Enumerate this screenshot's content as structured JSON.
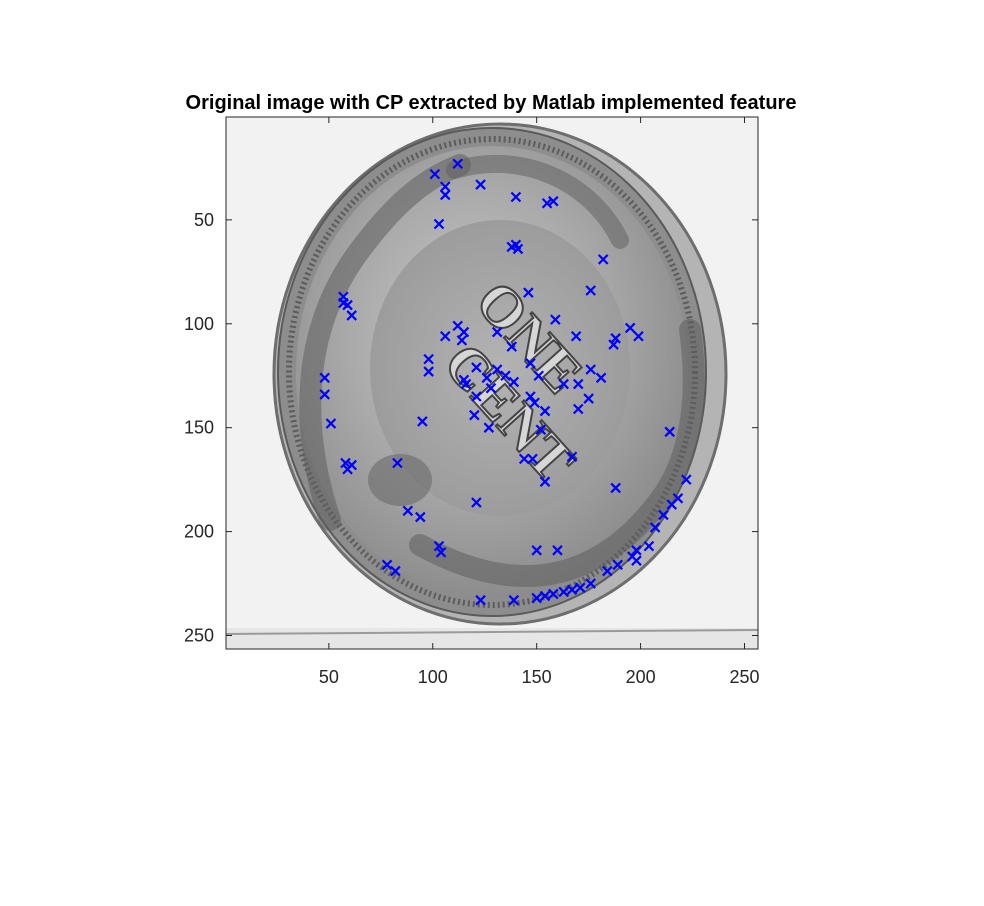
{
  "chart_data": {
    "type": "scatter",
    "title": "Original image with CP extracted by Matlab implemented feature",
    "xlabel": "",
    "ylabel": "",
    "xlim": [
      0.5,
      256.5
    ],
    "ylim": [
      0.5,
      256.5
    ],
    "y_reversed": true,
    "grid": false,
    "background_image": "grayscale-coin-one-cent",
    "marker": "x",
    "marker_color": "#0000ff",
    "xticks": [
      50,
      100,
      150,
      200,
      250
    ],
    "yticks": [
      50,
      100,
      150,
      200,
      250
    ],
    "xtick_labels": [
      "50",
      "100",
      "150",
      "200",
      "250"
    ],
    "ytick_labels": [
      "50",
      "100",
      "150",
      "200",
      "250"
    ],
    "points": [
      [
        112,
        23
      ],
      [
        101,
        28
      ],
      [
        106,
        34
      ],
      [
        106,
        38
      ],
      [
        123,
        33
      ],
      [
        103,
        52
      ],
      [
        140,
        39
      ],
      [
        155,
        42
      ],
      [
        158,
        41
      ],
      [
        138,
        63
      ],
      [
        140,
        62
      ],
      [
        141,
        64
      ],
      [
        182,
        69
      ],
      [
        176,
        84
      ],
      [
        146,
        85
      ],
      [
        57,
        87
      ],
      [
        57,
        90
      ],
      [
        59,
        91
      ],
      [
        61,
        96
      ],
      [
        112,
        101
      ],
      [
        115,
        104
      ],
      [
        114,
        108
      ],
      [
        106,
        106
      ],
      [
        131,
        104
      ],
      [
        159,
        98
      ],
      [
        169,
        106
      ],
      [
        195,
        102
      ],
      [
        188,
        107
      ],
      [
        187,
        110
      ],
      [
        199,
        106
      ],
      [
        98,
        117
      ],
      [
        98,
        123
      ],
      [
        121,
        121
      ],
      [
        115,
        127
      ],
      [
        116,
        129
      ],
      [
        126,
        126
      ],
      [
        131,
        122
      ],
      [
        138,
        111
      ],
      [
        135,
        125
      ],
      [
        139,
        128
      ],
      [
        147,
        119
      ],
      [
        151,
        125
      ],
      [
        163,
        129
      ],
      [
        170,
        129
      ],
      [
        176,
        122
      ],
      [
        181,
        126
      ],
      [
        48,
        126
      ],
      [
        48,
        134
      ],
      [
        121,
        135
      ],
      [
        128,
        131
      ],
      [
        147,
        135
      ],
      [
        149,
        138
      ],
      [
        154,
        142
      ],
      [
        175,
        136
      ],
      [
        170,
        141
      ],
      [
        51,
        148
      ],
      [
        95,
        147
      ],
      [
        120,
        144
      ],
      [
        127,
        150
      ],
      [
        152,
        151
      ],
      [
        214,
        152
      ],
      [
        58,
        167
      ],
      [
        59,
        170
      ],
      [
        61,
        168
      ],
      [
        83,
        167
      ],
      [
        144,
        165
      ],
      [
        148,
        165
      ],
      [
        167,
        164
      ],
      [
        154,
        176
      ],
      [
        188,
        179
      ],
      [
        121,
        186
      ],
      [
        88,
        190
      ],
      [
        94,
        193
      ],
      [
        222,
        175
      ],
      [
        218,
        184
      ],
      [
        215,
        187
      ],
      [
        211,
        192
      ],
      [
        207,
        198
      ],
      [
        103,
        207
      ],
      [
        104,
        210
      ],
      [
        150,
        209
      ],
      [
        160,
        209
      ],
      [
        198,
        209
      ],
      [
        204,
        207
      ],
      [
        196,
        212
      ],
      [
        198,
        214
      ],
      [
        189,
        216
      ],
      [
        184,
        219
      ],
      [
        78,
        216
      ],
      [
        82,
        219
      ],
      [
        123,
        233
      ],
      [
        139,
        233
      ],
      [
        150,
        232
      ],
      [
        154,
        231
      ],
      [
        158,
        230
      ],
      [
        163,
        229
      ],
      [
        167,
        228
      ],
      [
        171,
        227
      ],
      [
        176,
        225
      ]
    ]
  }
}
